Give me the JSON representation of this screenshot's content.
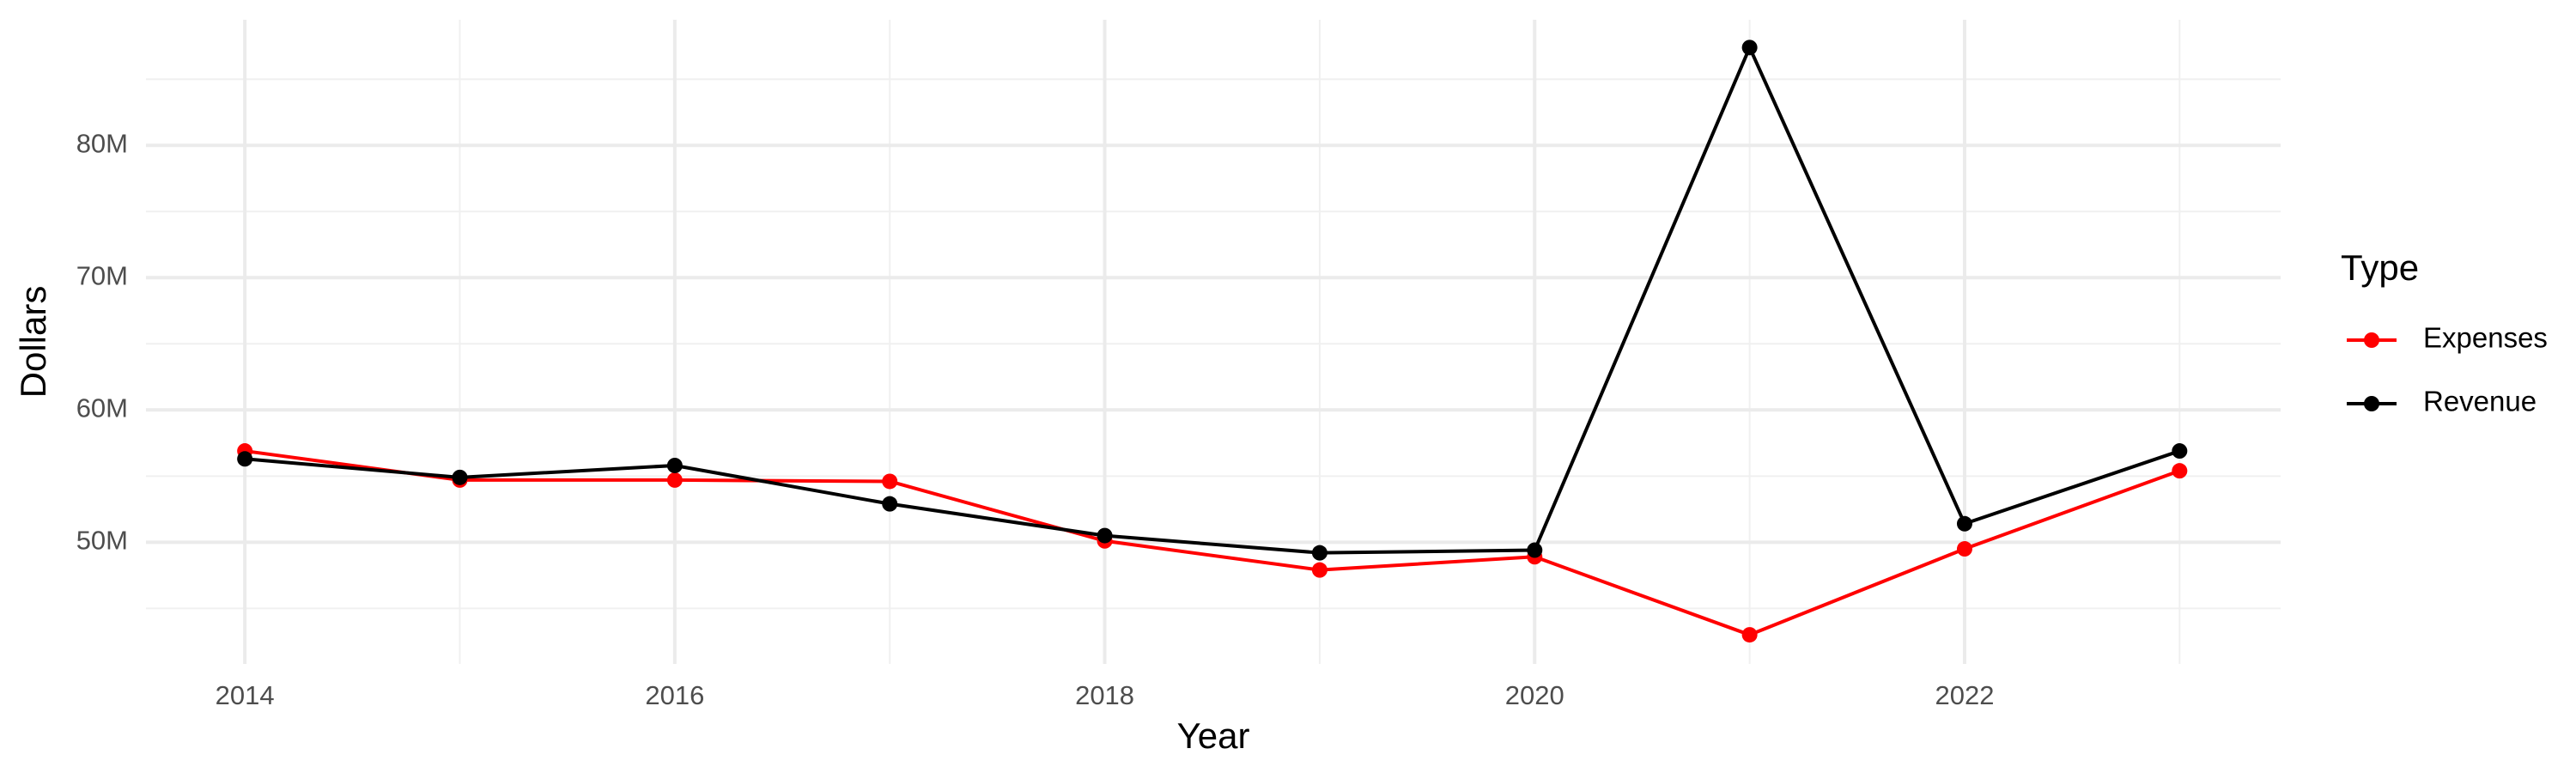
{
  "chart_data": {
    "type": "line",
    "x_label": "Year",
    "y_label": "Dollars",
    "legend_title": "Type",
    "legend_position": "right",
    "grid": true,
    "x": [
      2014,
      2015,
      2016,
      2017,
      2018,
      2019,
      2020,
      2021,
      2022,
      2023
    ],
    "series": [
      {
        "name": "Expenses",
        "color": "#ff0000",
        "values": [
          56900000,
          54700000,
          54700000,
          54600000,
          50100000,
          47900000,
          48900000,
          43000000,
          49500000,
          55400000
        ]
      },
      {
        "name": "Revenue",
        "color": "#000000",
        "values": [
          56300000,
          54900000,
          55800000,
          52900000,
          50500000,
          49200000,
          49400000,
          87400000,
          51400000,
          56900000
        ]
      }
    ],
    "xlim": [
      2013.54,
      2023.47
    ],
    "xticks": [
      2014,
      2016,
      2018,
      2020,
      2022
    ],
    "x_minor_ticks": [
      2015,
      2017,
      2019,
      2021,
      2023
    ],
    "ylim": [
      40800000,
      89500000
    ],
    "yticks": [
      {
        "value": 50000000,
        "label": "50M"
      },
      {
        "value": 60000000,
        "label": "60M"
      },
      {
        "value": 70000000,
        "label": "70M"
      },
      {
        "value": 80000000,
        "label": "80M"
      }
    ],
    "y_minor_ticks": [
      45000000,
      55000000,
      65000000,
      75000000,
      85000000
    ]
  }
}
